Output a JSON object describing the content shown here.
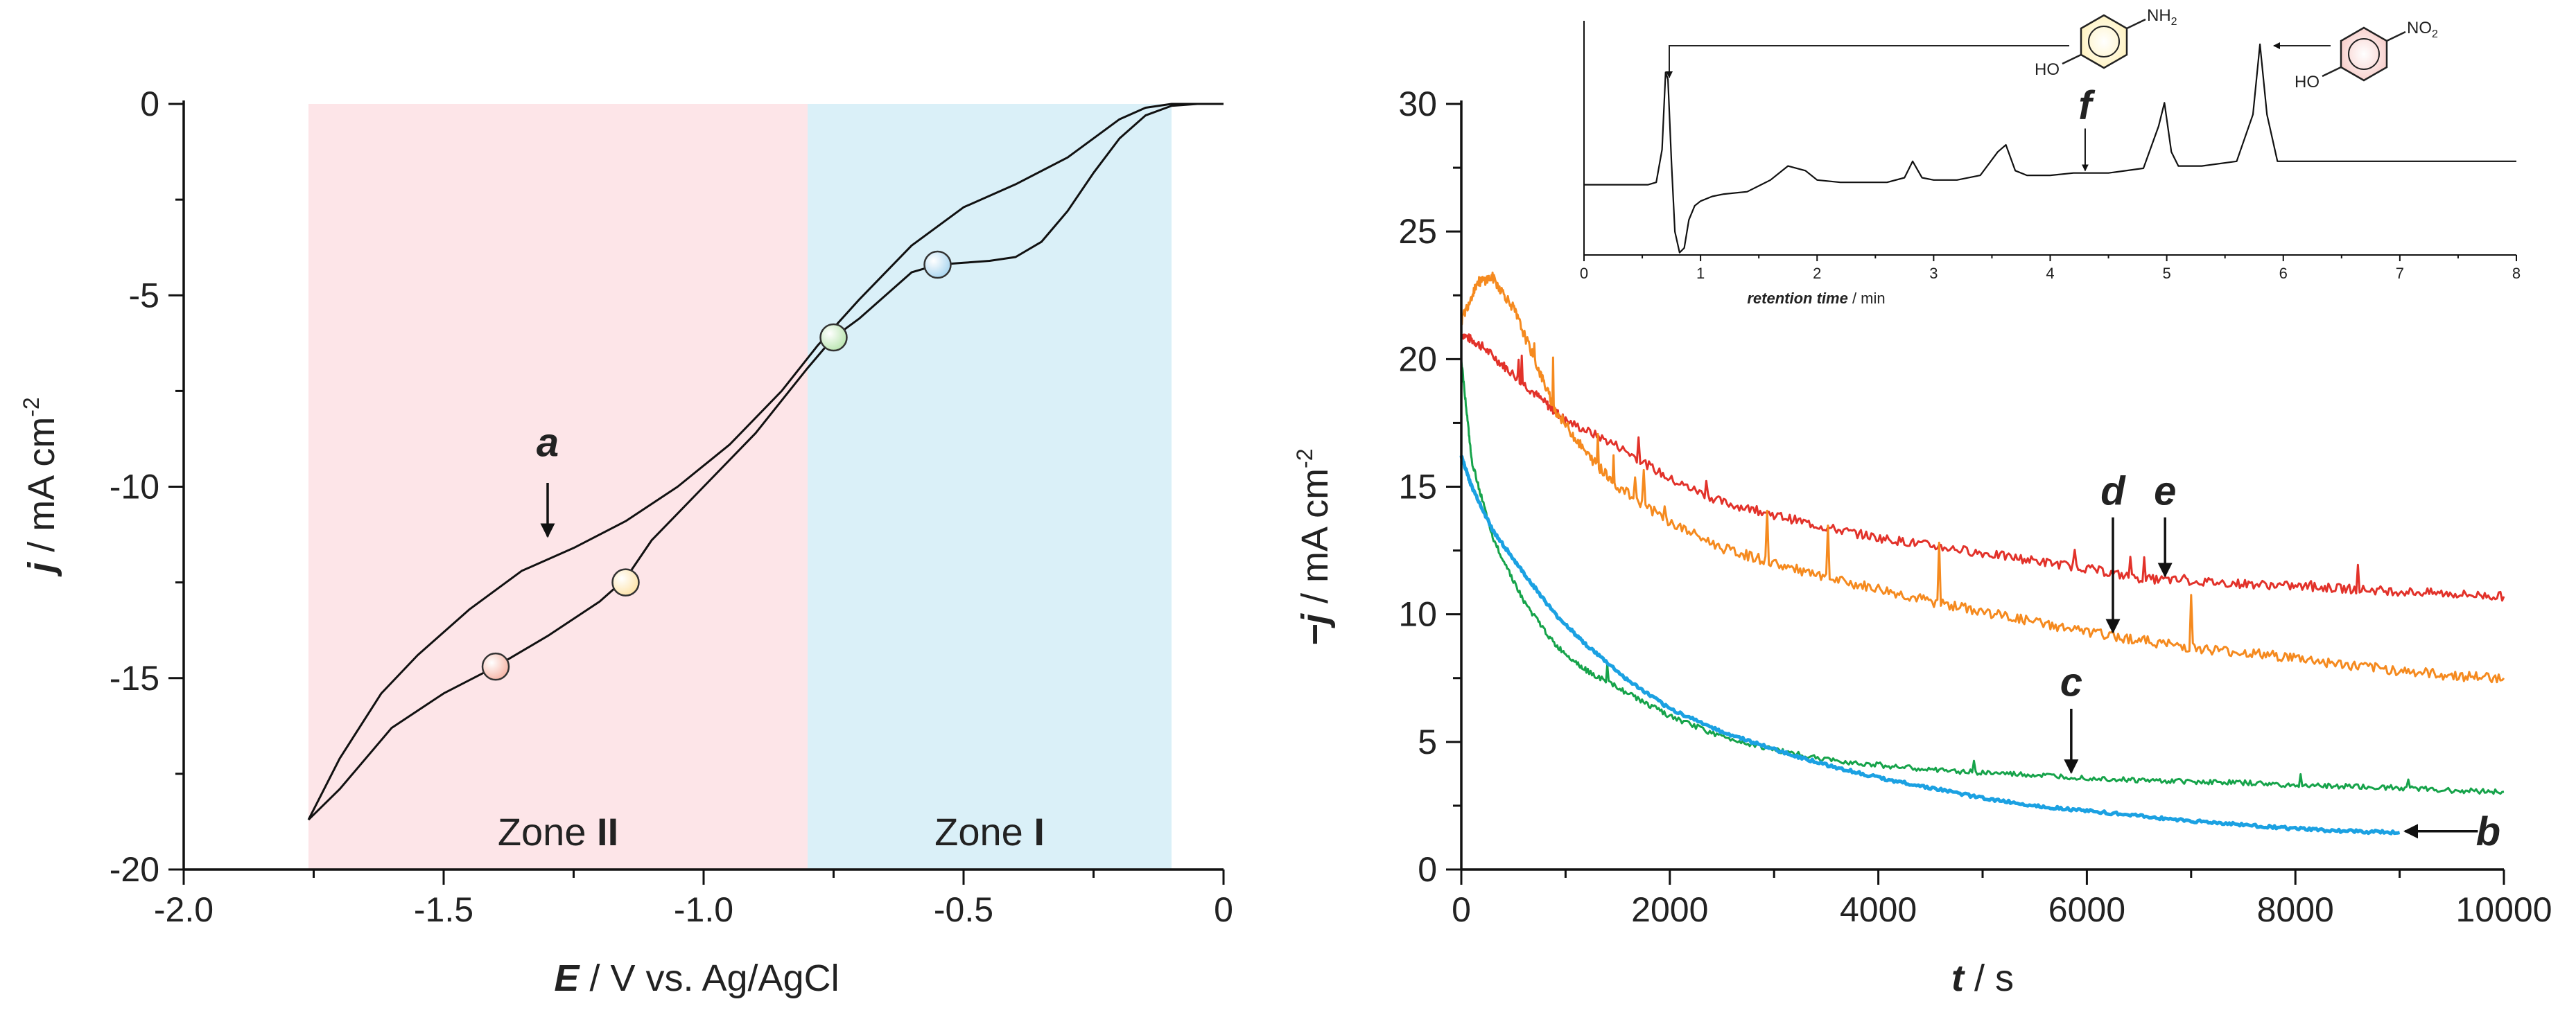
{
  "chart_data": [
    {
      "type": "line",
      "id": "voltammogram",
      "xlabel_var": "E",
      "xlabel_rest": " / V vs. Ag/AgCl",
      "ylabel_var": "j",
      "ylabel_rest": " / mA cm",
      "ylabel_sup": "-2",
      "xlim": [
        -2.0,
        0
      ],
      "ylim": [
        -20,
        0
      ],
      "xticks": [
        -2.0,
        -1.5,
        -1.0,
        -0.5,
        0
      ],
      "xtick_labels": [
        "-2.0",
        "-1.5",
        "-1.0",
        "-0.5",
        "0"
      ],
      "yticks": [
        0,
        -5,
        -10,
        -15,
        -20
      ],
      "ytick_labels": [
        "0",
        "-5",
        "-10",
        "-15",
        "-20"
      ],
      "zones": [
        {
          "name": "Zone II",
          "prefix": "Zone ",
          "numeral": "II",
          "x_from": -1.76,
          "x_to": -0.8,
          "color": "#fde5e8"
        },
        {
          "name": "Zone I",
          "prefix": "Zone ",
          "numeral": "I",
          "x_from": -0.8,
          "x_to": -0.1,
          "color": "#daf0f8"
        }
      ],
      "series": [
        {
          "name": "a",
          "color": "#111111",
          "x": [
            -1.76,
            -1.7,
            -1.62,
            -1.55,
            -1.45,
            -1.35,
            -1.25,
            -1.15,
            -1.05,
            -0.95,
            -0.85,
            -0.78,
            -0.7,
            -0.6,
            -0.5,
            -0.4,
            -0.3,
            -0.25,
            -0.2,
            -0.15,
            -0.1,
            -0.05,
            0.0
          ],
          "y": [
            -18.7,
            -17.1,
            -15.4,
            -14.4,
            -13.2,
            -12.2,
            -11.6,
            -10.9,
            -10.0,
            -8.9,
            -7.5,
            -6.3,
            -5.1,
            -3.7,
            -2.7,
            -2.1,
            -1.4,
            -0.9,
            -0.4,
            -0.1,
            0.0,
            0.0,
            0.0
          ]
        },
        {
          "name": "a-return",
          "color": "#111111",
          "x": [
            0.0,
            -0.05,
            -0.1,
            -0.15,
            -0.2,
            -0.25,
            -0.3,
            -0.35,
            -0.4,
            -0.45,
            -0.5,
            -0.55,
            -0.6,
            -0.65,
            -0.7,
            -0.75,
            -0.8,
            -0.9,
            -1.0,
            -1.1,
            -1.15,
            -1.2,
            -1.3,
            -1.4,
            -1.5,
            -1.6,
            -1.7,
            -1.76
          ],
          "y": [
            0.0,
            0.0,
            -0.05,
            -0.3,
            -0.9,
            -1.8,
            -2.8,
            -3.6,
            -4.0,
            -4.1,
            -4.15,
            -4.2,
            -4.4,
            -5.0,
            -5.6,
            -6.1,
            -6.9,
            -8.6,
            -10.0,
            -11.4,
            -12.4,
            -13.0,
            -13.9,
            -14.7,
            -15.4,
            -16.3,
            -17.9,
            -18.7
          ]
        }
      ],
      "markers": [
        {
          "name": "blue-marker",
          "x": -0.55,
          "y": -4.2,
          "color": "#a9d5ef"
        },
        {
          "name": "green-marker",
          "x": -0.75,
          "y": -6.1,
          "color": "#b9e5b0"
        },
        {
          "name": "yellow-marker",
          "x": -1.15,
          "y": -12.5,
          "color": "#fde3a8"
        },
        {
          "name": "red-marker",
          "x": -1.4,
          "y": -14.7,
          "color": "#f7b4a6"
        }
      ],
      "annotations": [
        {
          "label": "a",
          "x": -1.3,
          "y_text": -9.2,
          "y_from": -9.9,
          "y_to": -11.3
        }
      ]
    },
    {
      "type": "line",
      "id": "chronoamperometry",
      "xlabel_var": "t",
      "xlabel_rest": " / s",
      "ylabel_var": "−j",
      "ylabel_rest": " / mA cm",
      "ylabel_sup": "-2",
      "xlim": [
        0,
        10000
      ],
      "ylim": [
        0,
        30
      ],
      "xticks": [
        0,
        2000,
        4000,
        6000,
        8000,
        10000
      ],
      "xtick_labels": [
        "0",
        "2000",
        "4000",
        "6000",
        "8000",
        "10000"
      ],
      "yticks": [
        0,
        5,
        10,
        15,
        20,
        25,
        30
      ],
      "ytick_labels": [
        "0",
        "5",
        "10",
        "15",
        "20",
        "25",
        "30"
      ],
      "series": [
        {
          "name": "e",
          "color": "#e2322a",
          "x": [
            0,
            200,
            500,
            800,
            1000,
            1500,
            2000,
            2500,
            3000,
            3500,
            4000,
            4500,
            5000,
            5500,
            6000,
            6500,
            7000,
            7500,
            8000,
            8500,
            9000,
            9500,
            10000
          ],
          "y": [
            21.0,
            20.5,
            19.4,
            18.3,
            17.6,
            16.6,
            15.3,
            14.4,
            13.9,
            13.4,
            13.0,
            12.7,
            12.4,
            12.1,
            11.8,
            11.4,
            11.3,
            11.2,
            11.1,
            11.0,
            10.9,
            10.8,
            10.7
          ]
        },
        {
          "name": "d",
          "color": "#f58a1f",
          "x": [
            0,
            150,
            300,
            500,
            700,
            900,
            1200,
            1500,
            2000,
            2500,
            3000,
            3500,
            4000,
            4500,
            5000,
            5500,
            6000,
            6500,
            7000,
            7500,
            8000,
            8500,
            9000,
            9500,
            10000
          ],
          "y": [
            21.5,
            23.0,
            23.2,
            22.0,
            20.0,
            18.0,
            16.3,
            15.0,
            13.6,
            12.6,
            12.0,
            11.4,
            11.0,
            10.5,
            10.1,
            9.7,
            9.3,
            9.0,
            8.7,
            8.5,
            8.3,
            8.0,
            7.8,
            7.6,
            7.5
          ]
        },
        {
          "name": "c",
          "color": "#16a34a",
          "x": [
            0,
            100,
            300,
            600,
            900,
            1200,
            1600,
            2000,
            2500,
            3000,
            3500,
            4000,
            4500,
            5000,
            5500,
            6000,
            6500,
            7000,
            7500,
            8000,
            8500,
            9000,
            9500,
            10000
          ],
          "y": [
            20.0,
            16.0,
            13.0,
            10.5,
            8.8,
            7.8,
            6.9,
            6.0,
            5.2,
            4.7,
            4.3,
            4.1,
            3.9,
            3.8,
            3.7,
            3.6,
            3.5,
            3.45,
            3.4,
            3.3,
            3.25,
            3.2,
            3.1,
            3.05
          ]
        },
        {
          "name": "b",
          "color": "#1ba1e2",
          "x": [
            0,
            100,
            300,
            600,
            900,
            1200,
            1600,
            2000,
            2500,
            3000,
            3500,
            4000,
            4500,
            5000,
            5500,
            6000,
            6500,
            7000,
            7500,
            8000,
            8500,
            9000
          ],
          "y": [
            16.2,
            15.0,
            13.3,
            11.6,
            10.0,
            8.8,
            7.4,
            6.3,
            5.4,
            4.7,
            4.1,
            3.6,
            3.2,
            2.8,
            2.5,
            2.3,
            2.1,
            1.9,
            1.75,
            1.6,
            1.5,
            1.45
          ]
        }
      ],
      "annotations": [
        {
          "label": "e",
          "x": 6750,
          "y_text": 14.3,
          "y_from": 13.8,
          "y_to": 11.5,
          "dir": "down"
        },
        {
          "label": "d",
          "x": 6250,
          "y_text": 14.3,
          "y_from": 13.8,
          "y_to": 9.3,
          "dir": "down"
        },
        {
          "label": "c",
          "x": 5850,
          "y_text": 6.8,
          "y_from": 6.3,
          "y_to": 3.8,
          "dir": "down"
        },
        {
          "label": "b",
          "x": 10000,
          "y_text": 1.5,
          "x_from": 9750,
          "x_to": 9050,
          "dir": "left"
        }
      ],
      "inset": {
        "xlabel_var": "retention time",
        "xlabel_rest": " / min",
        "xlim": [
          0,
          8
        ],
        "xticks": [
          0,
          1,
          2,
          3,
          4,
          5,
          6,
          7,
          8
        ],
        "xtick_labels": [
          "0",
          "1",
          "2",
          "3",
          "4",
          "5",
          "6",
          "7",
          "8"
        ],
        "ylim": [
          0,
          10
        ],
        "series": [
          {
            "name": "f",
            "color": "#111111",
            "x": [
              0.0,
              0.55,
              0.62,
              0.67,
              0.7,
              0.72,
              0.75,
              0.78,
              0.82,
              0.86,
              0.9,
              0.95,
              1.0,
              1.1,
              1.2,
              1.4,
              1.6,
              1.75,
              1.9,
              2.0,
              2.2,
              2.4,
              2.6,
              2.75,
              2.82,
              2.9,
              3.0,
              3.2,
              3.4,
              3.55,
              3.62,
              3.7,
              3.8,
              4.0,
              4.2,
              4.5,
              4.8,
              4.93,
              4.98,
              5.04,
              5.1,
              5.3,
              5.6,
              5.74,
              5.8,
              5.86,
              5.95,
              6.2,
              6.6,
              7.0,
              7.4,
              8.0
            ],
            "y": [
              3.0,
              3.0,
              3.1,
              4.5,
              7.8,
              7.5,
              4.0,
              1.0,
              0.1,
              0.3,
              1.5,
              2.1,
              2.3,
              2.5,
              2.6,
              2.7,
              3.2,
              3.8,
              3.6,
              3.2,
              3.1,
              3.1,
              3.1,
              3.3,
              4.0,
              3.3,
              3.2,
              3.2,
              3.4,
              4.4,
              4.7,
              3.6,
              3.4,
              3.4,
              3.5,
              3.5,
              3.7,
              5.5,
              6.5,
              4.4,
              3.8,
              3.8,
              4.0,
              6.0,
              9.0,
              6.0,
              4.0,
              4.0,
              4.0,
              4.0,
              4.0,
              4.0
            ]
          }
        ],
        "annotations": [
          {
            "label": "f",
            "x": 4.3,
            "y_text": 5.8,
            "y_from": 5.4,
            "y_to": 3.6
          }
        ],
        "molecules": [
          {
            "name": "4-aminophenol",
            "substituent": "NH",
            "sub_index": "2",
            "hydroxyl": "HO",
            "ring_color": "#fff1b8"
          },
          {
            "name": "4-nitrophenol",
            "substituent": "NO",
            "sub_index": "2",
            "hydroxyl": "HO",
            "ring_color": "#f7c8c4"
          }
        ]
      }
    }
  ]
}
